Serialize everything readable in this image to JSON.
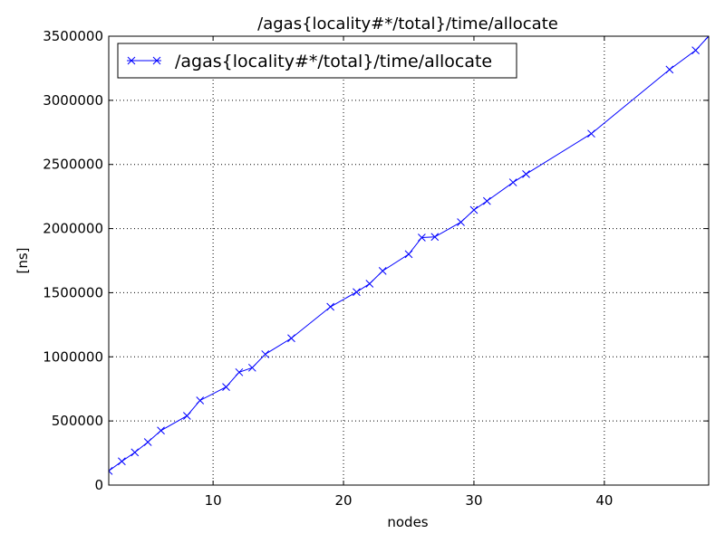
{
  "chart_data": {
    "type": "line",
    "title": "/agas{locality#*/total}/time/allocate",
    "xlabel": "nodes",
    "ylabel": "[ns]",
    "xlim": [
      2,
      48
    ],
    "ylim": [
      0,
      3500000
    ],
    "xticks": [
      10,
      20,
      30,
      40
    ],
    "yticks": [
      0,
      500000,
      1000000,
      1500000,
      2000000,
      2500000,
      3000000,
      3500000
    ],
    "xtick_labels": [
      "10",
      "20",
      "30",
      "40"
    ],
    "ytick_labels": [
      "0",
      "500000",
      "1000000",
      "1500000",
      "2000000",
      "2500000",
      "3000000",
      "3500000"
    ],
    "grid": true,
    "legend_position": "top-left",
    "series": [
      {
        "name": "/agas{locality#*/total}/time/allocate",
        "color": "#0000ff",
        "marker": "x",
        "x": [
          2,
          3,
          4,
          5,
          6,
          8,
          9,
          11,
          12,
          13,
          14,
          16,
          19,
          21,
          22,
          23,
          25,
          26,
          27,
          29,
          30,
          31,
          33,
          34,
          39,
          45,
          47,
          48
        ],
        "y": [
          110000,
          185000,
          255000,
          335000,
          425000,
          540000,
          660000,
          765000,
          880000,
          915000,
          1020000,
          1145000,
          1390000,
          1505000,
          1570000,
          1670000,
          1800000,
          1930000,
          1935000,
          2050000,
          2145000,
          2215000,
          2360000,
          2425000,
          2740000,
          3240000,
          3390000,
          3500000
        ]
      }
    ]
  }
}
